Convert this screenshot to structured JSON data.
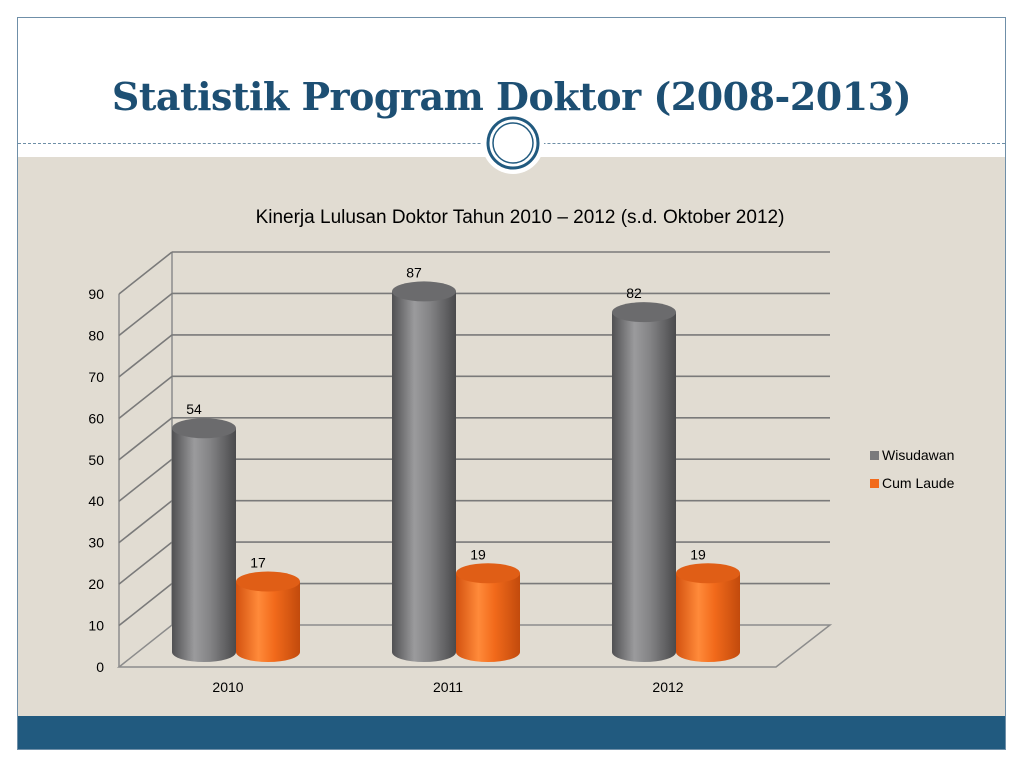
{
  "slide": {
    "title": "Statistik Program Doktor (2008-2013)",
    "colors": {
      "title": "#1d4f73",
      "footer": "#215a7f",
      "background": "#e1dcd2"
    }
  },
  "chart_data": {
    "type": "bar",
    "title": "Kinerja Lulusan Doktor Tahun 2010 – 2012 (s.d. Oktober 2012)",
    "xlabel": "",
    "ylabel": "",
    "categories": [
      "2010",
      "2011",
      "2012"
    ],
    "series": [
      {
        "name": "Wisudawan",
        "values": [
          54,
          87,
          82
        ],
        "color": "#7a7a7c"
      },
      {
        "name": "Cum Laude",
        "values": [
          17,
          19,
          19
        ],
        "color": "#f26a1b"
      }
    ],
    "ylim": [
      0,
      90
    ],
    "yticks": [
      0,
      10,
      20,
      30,
      40,
      50,
      60,
      70,
      80,
      90
    ],
    "grid": true,
    "legend": "right",
    "style": "3d-cylinder"
  }
}
